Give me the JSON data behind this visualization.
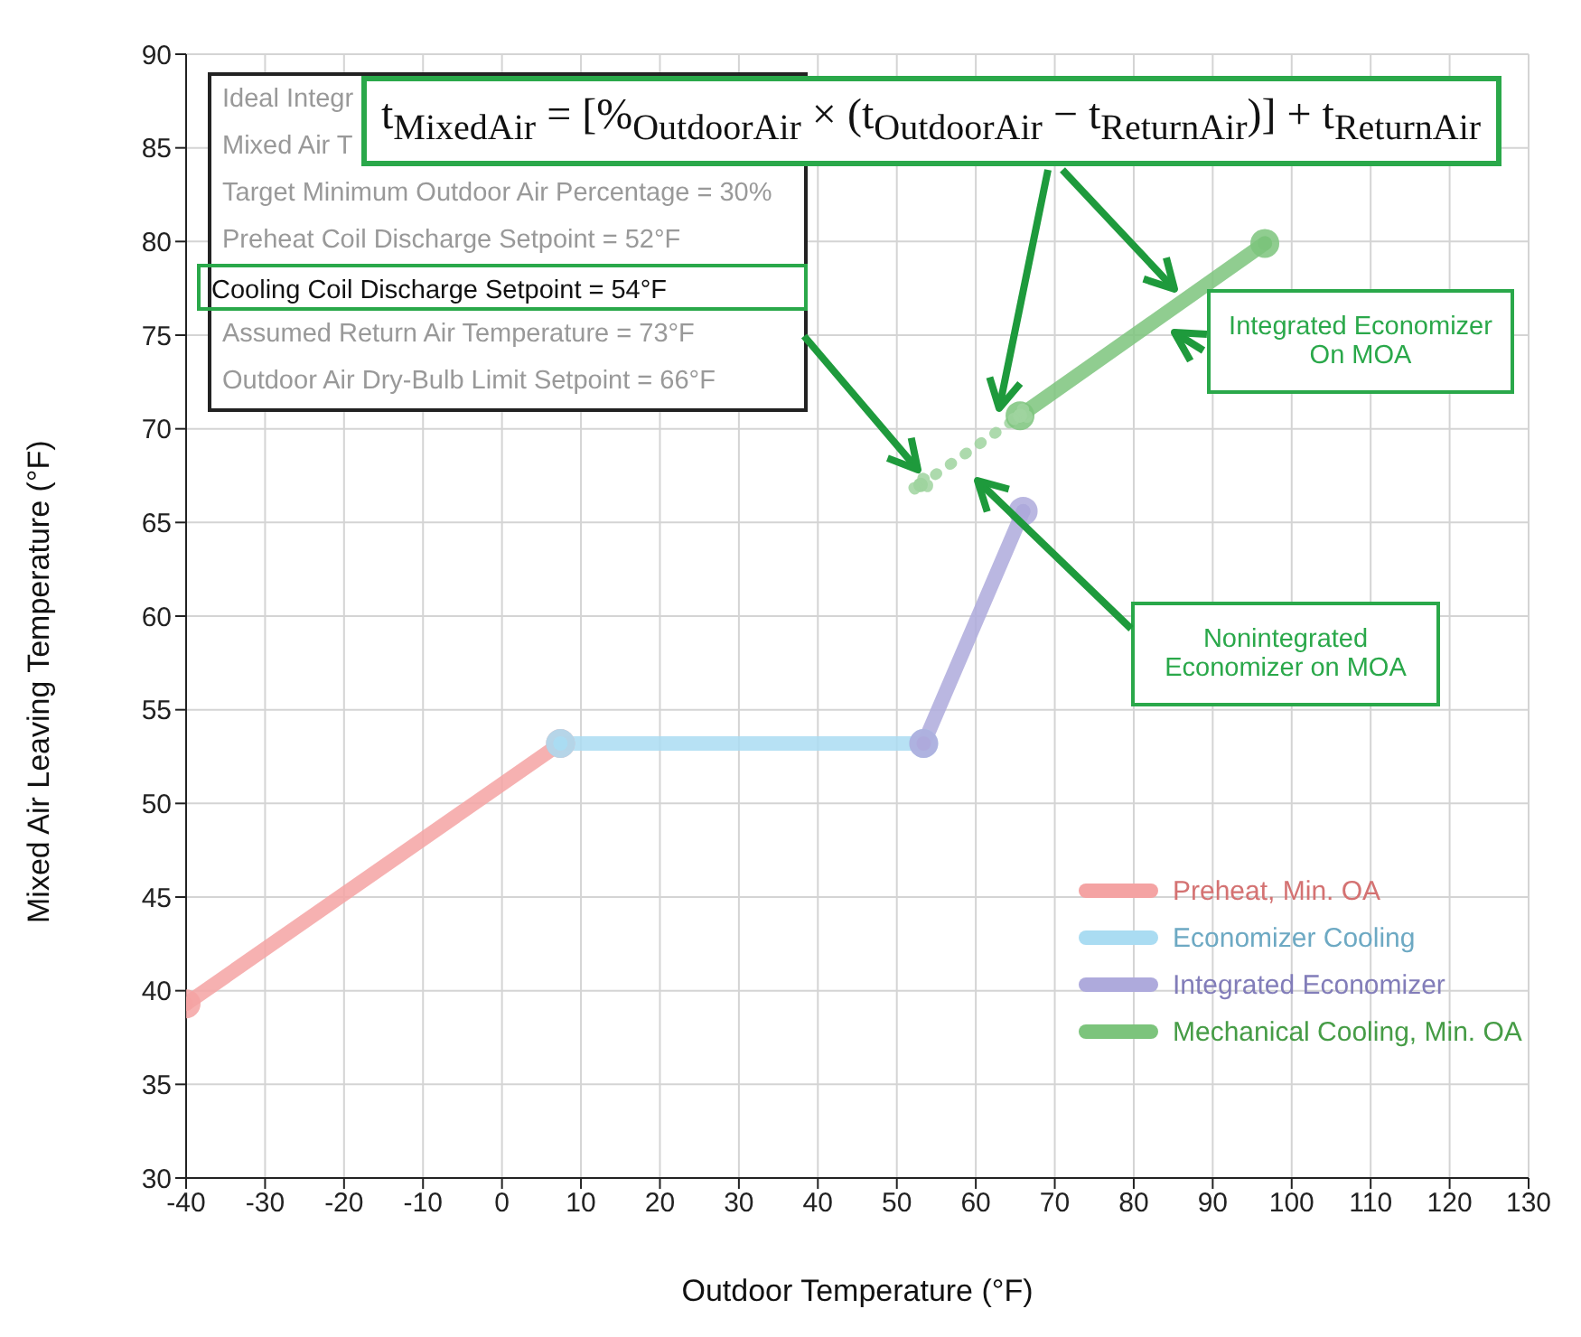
{
  "chart_data": {
    "type": "line",
    "xlabel": "Outdoor Temperature (°F)",
    "ylabel": "Mixed Air Leaving Temperature (°F)",
    "xlim": [
      -40,
      130
    ],
    "xticks": [
      -40,
      -30,
      -20,
      -10,
      0,
      10,
      20,
      30,
      40,
      50,
      60,
      70,
      80,
      90,
      100,
      110,
      120,
      130
    ],
    "ylim": [
      30,
      90
    ],
    "yticks": [
      30,
      35,
      40,
      45,
      50,
      55,
      60,
      65,
      70,
      75,
      80,
      85,
      90
    ],
    "grid": true,
    "legend": "bottom right",
    "marker": "circle",
    "line_style": "solid",
    "series": [
      {
        "name": "Preheat, Min. OA",
        "color": "#f4a3a3",
        "x": [
          -40,
          7.4
        ],
        "values": [
          39.3,
          53.2
        ]
      },
      {
        "name": "Economizer Cooling",
        "color": "#aadcf2",
        "x": [
          7.4,
          53.4
        ],
        "values": [
          53.2,
          53.2
        ]
      },
      {
        "name": "Integrated Economizer",
        "color": "#aeaadc",
        "x": [
          53.4,
          66
        ],
        "values": [
          53.2,
          65.6
        ]
      },
      {
        "name": "Mechanical Cooling, Min. OA",
        "color": "#7cc47c",
        "x": [
          65.6,
          96.6
        ],
        "values": [
          70.7,
          79.9
        ]
      },
      {
        "color": "#9fd49f",
        "x": [
          53,
          65.6
        ],
        "values": [
          67,
          70.7
        ],
        "line_style": "dotted"
      }
    ],
    "annotations": [
      "Ideal Integr",
      "Mixed Air T",
      "Target Minimum Outdoor Air Percentage = 30%",
      "Preheat Coil Discharge Setpoint = 52°F",
      "Cooling Coil Discharge Setpoint = 54°F",
      "Assumed Return Air Temperature = 73°F",
      "Outdoor Air Dry-Bulb Limit Setpoint = 66°F",
      "t$_{MixedAir}$ = [%$_{OutdoorAir}$ × (t$_{OutdoorAir}$ − t$_{ReturnAir}$)] + t$_{ReturnAir}$",
      "Integrated Economizer On MOA",
      "Nonintegrated Economizer on MOA"
    ]
  }
}
